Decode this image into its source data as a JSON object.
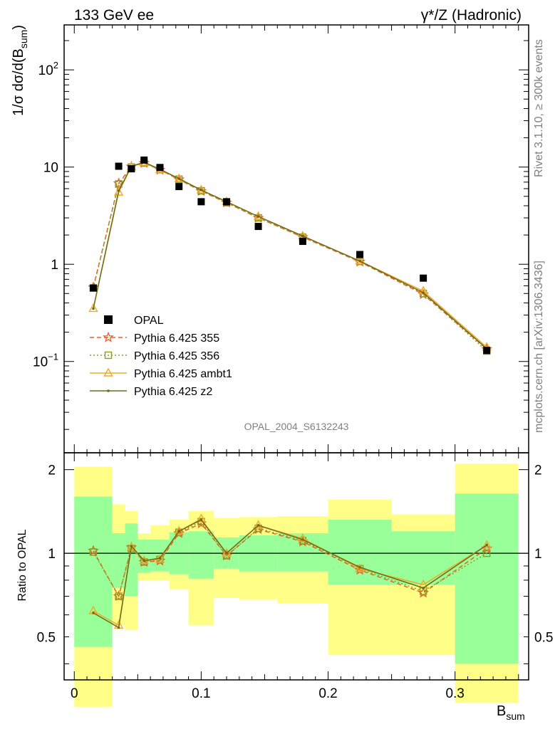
{
  "header": {
    "left_title": "133 GeV ee",
    "right_title": "γ*/Z (Hadronic)",
    "watermark": "OPAL_2004_S6132243",
    "side_rivet": "Rivet 3.1.10, ≥ 300k events",
    "side_mcplots": "mcplots.cern.ch [arXiv:1306.3436]"
  },
  "axes": {
    "ylabel_main": "1/σ dσ/d(B",
    "ylabel_main_sub": "sum",
    "ylabel_main_close": ")",
    "ylabel_ratio": "Ratio to OPAL",
    "xlabel": "B",
    "xlabel_sub": "sum",
    "main_yticks": [
      {
        "value": 0.1,
        "label": "10",
        "sup": "−1"
      },
      {
        "value": 1,
        "label": "1",
        "sup": ""
      },
      {
        "value": 10,
        "label": "10",
        "sup": ""
      },
      {
        "value": 100,
        "label": "10",
        "sup": "2"
      }
    ],
    "ratio_yticks": [
      {
        "value": 0.5,
        "label": "0.5"
      },
      {
        "value": 1,
        "label": "1"
      },
      {
        "value": 2,
        "label": "2"
      }
    ],
    "xticks": [
      {
        "value": 0,
        "label": "0"
      },
      {
        "value": 0.1,
        "label": "0.1"
      },
      {
        "value": 0.2,
        "label": "0.2"
      },
      {
        "value": 0.3,
        "label": "0.3"
      }
    ]
  },
  "legend": [
    {
      "label": "OPAL",
      "key": "opal"
    },
    {
      "label": "Pythia 6.425 355",
      "key": "p355"
    },
    {
      "label": "Pythia 6.425 356",
      "key": "p356"
    },
    {
      "label": "Pythia 6.425 ambt1",
      "key": "ambt1"
    },
    {
      "label": "Pythia 6.425 z2",
      "key": "z2"
    }
  ],
  "chart_data": {
    "type": "line",
    "xlim": [
      -0.008,
      0.358
    ],
    "main_ylim": [
      0.0115,
      290
    ],
    "main_yscale": "log",
    "ratio_ylim": [
      0.35,
      2.3
    ],
    "ratio_yscale": "log",
    "bins": [
      [
        0,
        0.03
      ],
      [
        0.03,
        0.04
      ],
      [
        0.04,
        0.05
      ],
      [
        0.05,
        0.06
      ],
      [
        0.06,
        0.075
      ],
      [
        0.075,
        0.09
      ],
      [
        0.09,
        0.11
      ],
      [
        0.11,
        0.13
      ],
      [
        0.13,
        0.16
      ],
      [
        0.16,
        0.2
      ],
      [
        0.2,
        0.25
      ],
      [
        0.25,
        0.3
      ],
      [
        0.3,
        0.35
      ]
    ],
    "x": [
      0.015,
      0.035,
      0.045,
      0.055,
      0.0675,
      0.0825,
      0.1,
      0.12,
      0.145,
      0.18,
      0.225,
      0.275,
      0.325
    ],
    "opal": [
      0.57,
      10.2,
      9.6,
      11.8,
      9.9,
      6.3,
      4.4,
      4.4,
      2.45,
      1.72,
      1.26,
      0.72,
      0.13
    ],
    "band_stat": [
      [
        0.46,
        1.6
      ],
      [
        0.75,
        1.18
      ],
      [
        0.7,
        1.28
      ],
      [
        0.85,
        1.12
      ],
      [
        0.86,
        1.12
      ],
      [
        0.84,
        1.19
      ],
      [
        0.81,
        1.2
      ],
      [
        0.88,
        1.14
      ],
      [
        0.86,
        1.16
      ],
      [
        0.86,
        1.18
      ],
      [
        0.77,
        1.32
      ],
      [
        0.77,
        1.2
      ],
      [
        0.4,
        1.64
      ]
    ],
    "band_total": [
      [
        0.28,
        2.05
      ],
      [
        0.55,
        1.5
      ],
      [
        0.53,
        1.42
      ],
      [
        0.8,
        1.18
      ],
      [
        0.8,
        1.26
      ],
      [
        0.74,
        1.32
      ],
      [
        0.55,
        1.42
      ],
      [
        0.69,
        1.34
      ],
      [
        0.68,
        1.35
      ],
      [
        0.66,
        1.36
      ],
      [
        0.43,
        1.56
      ],
      [
        0.43,
        1.38
      ],
      [
        0.29,
        2.1
      ]
    ],
    "series": [
      {
        "name": "Pythia 6.425 355",
        "key": "p355",
        "color": "#e8602c",
        "dash": "6,4",
        "marker": "star",
        "values": [
          0.58,
          6.8,
          10.1,
          11.0,
          9.35,
          7.45,
          5.65,
          4.3,
          3.0,
          1.9,
          1.06,
          0.49,
          0.134
        ],
        "ratio": [
          1.02,
          0.7,
          1.05,
          0.93,
          0.94,
          1.18,
          1.28,
          0.98,
          1.22,
          1.1,
          0.87,
          0.72,
          1.04
        ]
      },
      {
        "name": "Pythia 6.425 356",
        "key": "p356",
        "color": "#8a9d1e",
        "dash": "2,3",
        "marker": "square",
        "values": [
          0.57,
          6.7,
          10.0,
          11.0,
          9.4,
          7.5,
          5.7,
          4.3,
          3.0,
          1.9,
          1.07,
          0.5,
          0.128
        ],
        "ratio": [
          1.01,
          0.7,
          1.04,
          0.93,
          0.95,
          1.19,
          1.3,
          0.98,
          1.23,
          1.11,
          0.88,
          0.73,
          1.0
        ]
      },
      {
        "name": "Pythia 6.425 ambt1",
        "key": "ambt1",
        "color": "#f0aa28",
        "dash": "",
        "marker": "triangle",
        "values": [
          0.35,
          5.5,
          10.1,
          11.1,
          9.4,
          7.6,
          5.8,
          4.4,
          3.1,
          1.95,
          1.08,
          0.53,
          0.14
        ],
        "ratio": [
          0.62,
          0.55,
          1.05,
          0.94,
          0.95,
          1.2,
          1.33,
          1.0,
          1.26,
          1.13,
          0.88,
          0.77,
          1.07
        ]
      },
      {
        "name": "Pythia 6.425 z2",
        "key": "z2",
        "color": "#6b6b18",
        "dash": "",
        "marker": "dot",
        "values": [
          0.35,
          5.7,
          10.2,
          11.2,
          9.5,
          7.6,
          5.8,
          4.4,
          3.1,
          1.95,
          1.08,
          0.51,
          0.135
        ],
        "ratio": [
          0.61,
          0.54,
          1.06,
          0.94,
          0.96,
          1.2,
          1.32,
          1.0,
          1.26,
          1.12,
          0.89,
          0.75,
          1.07
        ]
      }
    ]
  }
}
